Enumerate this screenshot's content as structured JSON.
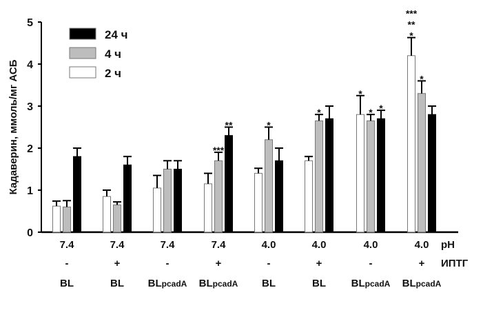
{
  "chart_data": {
    "type": "bar",
    "ylabel": "Кадаверин, ммоль/мг АСБ",
    "ylim": [
      0,
      5
    ],
    "yticks": [
      0,
      1,
      2,
      3,
      4,
      5
    ],
    "legend": {
      "placement": "top-left",
      "entries": [
        "24 ч",
        "4 ч",
        "2 ч"
      ]
    },
    "row_labels": {
      "ph": "pH",
      "iptg": "ИПТГ"
    },
    "categories": [
      {
        "ph": "7.4",
        "iptg": "-",
        "strain": "BL",
        "sub": ""
      },
      {
        "ph": "7.4",
        "iptg": "+",
        "strain": "BL",
        "sub": ""
      },
      {
        "ph": "7.4",
        "iptg": "-",
        "strain": "BL",
        "sub": "pcadA"
      },
      {
        "ph": "7.4",
        "iptg": "+",
        "strain": "BL",
        "sub": "pcadA"
      },
      {
        "ph": "4.0",
        "iptg": "-",
        "strain": "BL",
        "sub": ""
      },
      {
        "ph": "4.0",
        "iptg": "+",
        "strain": "BL",
        "sub": ""
      },
      {
        "ph": "4.0",
        "iptg": "-",
        "strain": "BL",
        "sub": "pcadA"
      },
      {
        "ph": "4.0",
        "iptg": "+",
        "strain": "BL",
        "sub": "pcadA"
      }
    ],
    "series": [
      {
        "name": "2 ч",
        "color": "#ffffff",
        "values": [
          0.62,
          0.85,
          1.05,
          1.15,
          1.4,
          1.7,
          2.8,
          4.2
        ],
        "errors": [
          0.12,
          0.15,
          0.3,
          0.25,
          0.12,
          0.1,
          0.45,
          0.43
        ],
        "annotations": [
          "",
          "",
          "",
          "",
          "",
          "",
          "*",
          "***\n**\n*"
        ]
      },
      {
        "name": "4 ч",
        "color": "#bdbdbd",
        "values": [
          0.6,
          0.65,
          1.5,
          1.7,
          2.2,
          2.65,
          2.65,
          3.3
        ],
        "errors": [
          0.15,
          0.07,
          0.2,
          0.2,
          0.3,
          0.15,
          0.15,
          0.3
        ],
        "annotations": [
          "",
          "",
          "",
          "***",
          "*",
          "*",
          "*",
          "*"
        ]
      },
      {
        "name": "24 ч",
        "color": "#000000",
        "values": [
          1.8,
          1.6,
          1.5,
          2.3,
          1.7,
          2.7,
          2.7,
          2.8
        ],
        "errors": [
          0.2,
          0.2,
          0.2,
          0.2,
          0.3,
          0.3,
          0.2,
          0.2
        ],
        "annotations": [
          "",
          "",
          "",
          "**",
          "",
          "",
          "*",
          ""
        ]
      }
    ]
  }
}
